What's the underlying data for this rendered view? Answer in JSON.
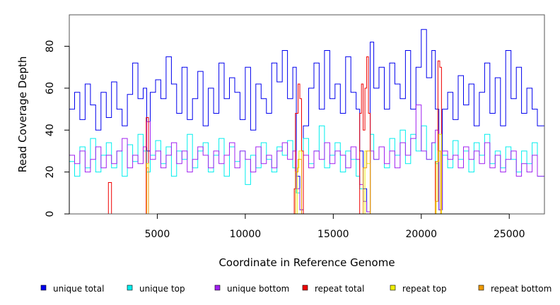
{
  "chart_data": {
    "type": "line",
    "title": "",
    "xlabel": "Coordinate in Reference Genome",
    "ylabel": "Read Coverage Depth",
    "xlim": [
      0,
      27000
    ],
    "ylim": [
      0,
      95
    ],
    "x_ticks": [
      5000,
      10000,
      15000,
      20000,
      25000
    ],
    "x_tick_labels": [
      "5000",
      "10000",
      "15000",
      "20000",
      "25000"
    ],
    "y_ticks": [
      0,
      20,
      40,
      60,
      80
    ],
    "y_tick_labels": [
      "0",
      "20",
      "40",
      "60",
      "80"
    ],
    "legend_position": "bottom",
    "series": [
      {
        "name": "unique total",
        "color": "#0000ee",
        "x": [
          0,
          300,
          600,
          900,
          1200,
          1500,
          1800,
          2100,
          2400,
          2700,
          3000,
          3300,
          3600,
          3900,
          4200,
          4400,
          4600,
          4900,
          5200,
          5500,
          5800,
          6100,
          6400,
          6700,
          7000,
          7300,
          7600,
          7900,
          8200,
          8500,
          8800,
          9100,
          9400,
          9700,
          10000,
          10300,
          10600,
          10900,
          11200,
          11500,
          11800,
          12100,
          12400,
          12700,
          12900,
          13100,
          13300,
          13600,
          13900,
          14200,
          14500,
          14800,
          15100,
          15400,
          15700,
          16000,
          16300,
          16500,
          16700,
          16900,
          17100,
          17300,
          17600,
          17900,
          18200,
          18500,
          18800,
          19100,
          19400,
          19700,
          20000,
          20300,
          20600,
          20800,
          21000,
          21200,
          21500,
          21800,
          22100,
          22400,
          22700,
          23000,
          23300,
          23600,
          23900,
          24200,
          24500,
          24800,
          25100,
          25400,
          25700,
          26000,
          26300,
          26600,
          27000
        ],
        "values": [
          50,
          58,
          45,
          62,
          52,
          40,
          58,
          46,
          63,
          50,
          42,
          57,
          72,
          55,
          60,
          30,
          58,
          64,
          55,
          75,
          62,
          48,
          70,
          45,
          55,
          68,
          42,
          60,
          48,
          72,
          55,
          65,
          58,
          45,
          70,
          40,
          62,
          55,
          48,
          72,
          63,
          78,
          55,
          70,
          18,
          2,
          42,
          60,
          72,
          50,
          78,
          55,
          62,
          48,
          75,
          58,
          50,
          30,
          12,
          1,
          82,
          60,
          70,
          50,
          72,
          62,
          55,
          78,
          50,
          70,
          88,
          65,
          78,
          50,
          2,
          50,
          58,
          45,
          66,
          52,
          62,
          42,
          58,
          72,
          48,
          65,
          42,
          78,
          55,
          70,
          48,
          60,
          50,
          42,
          46
        ]
      },
      {
        "name": "unique top",
        "color": "#00eeee",
        "x": [
          0,
          300,
          600,
          900,
          1200,
          1500,
          1800,
          2100,
          2400,
          2700,
          3000,
          3300,
          3600,
          3900,
          4200,
          4400,
          4600,
          4900,
          5200,
          5500,
          5800,
          6100,
          6400,
          6700,
          7000,
          7300,
          7600,
          7900,
          8200,
          8500,
          8800,
          9100,
          9400,
          9700,
          10000,
          10300,
          10600,
          10900,
          11200,
          11500,
          11800,
          12100,
          12400,
          12700,
          12900,
          13100,
          13300,
          13600,
          13900,
          14200,
          14500,
          14800,
          15100,
          15400,
          15700,
          16000,
          16300,
          16500,
          16700,
          16900,
          17100,
          17300,
          17600,
          17900,
          18200,
          18500,
          18800,
          19100,
          19400,
          19700,
          20000,
          20300,
          20600,
          20800,
          21000,
          21200,
          21500,
          21800,
          22100,
          22400,
          22700,
          23000,
          23300,
          23600,
          23900,
          24200,
          24500,
          24800,
          25100,
          25400,
          25700,
          26000,
          26300,
          26600,
          27000
        ],
        "values": [
          25,
          18,
          32,
          22,
          36,
          20,
          28,
          34,
          22,
          30,
          18,
          33,
          25,
          38,
          30,
          20,
          28,
          35,
          24,
          32,
          18,
          30,
          26,
          38,
          22,
          30,
          34,
          20,
          28,
          36,
          18,
          32,
          25,
          30,
          14,
          28,
          22,
          34,
          26,
          20,
          32,
          28,
          35,
          22,
          10,
          2,
          36,
          24,
          30,
          42,
          22,
          28,
          34,
          20,
          30,
          26,
          18,
          12,
          6,
          1,
          38,
          26,
          32,
          22,
          36,
          28,
          40,
          24,
          38,
          30,
          42,
          26,
          34,
          24,
          2,
          28,
          22,
          35,
          26,
          30,
          20,
          34,
          28,
          38,
          24,
          30,
          22,
          32,
          26,
          20,
          30,
          24,
          34,
          18,
          26
        ]
      },
      {
        "name": "unique bottom",
        "color": "#a020f0",
        "x": [
          0,
          300,
          600,
          900,
          1200,
          1500,
          1800,
          2100,
          2400,
          2700,
          3000,
          3300,
          3600,
          3900,
          4200,
          4400,
          4600,
          4900,
          5200,
          5500,
          5800,
          6100,
          6400,
          6700,
          7000,
          7300,
          7600,
          7900,
          8200,
          8500,
          8800,
          9100,
          9400,
          9700,
          10000,
          10300,
          10600,
          10900,
          11200,
          11500,
          11800,
          12100,
          12400,
          12700,
          12900,
          13100,
          13300,
          13600,
          13900,
          14200,
          14500,
          14800,
          15100,
          15400,
          15700,
          16000,
          16300,
          16500,
          16700,
          16900,
          17100,
          17300,
          17600,
          17900,
          18200,
          18500,
          18800,
          19100,
          19400,
          19700,
          20000,
          20300,
          20600,
          20800,
          21000,
          21200,
          21500,
          21800,
          22100,
          22400,
          22700,
          23000,
          23300,
          23600,
          23900,
          24200,
          24500,
          24800,
          25100,
          25400,
          25700,
          26000,
          26300,
          26600,
          27000
        ],
        "values": [
          28,
          24,
          30,
          20,
          26,
          32,
          22,
          28,
          24,
          30,
          36,
          22,
          28,
          24,
          32,
          44,
          26,
          30,
          22,
          28,
          34,
          24,
          30,
          20,
          26,
          32,
          28,
          22,
          30,
          24,
          28,
          34,
          22,
          30,
          26,
          20,
          32,
          24,
          28,
          22,
          30,
          34,
          26,
          30,
          12,
          2,
          28,
          22,
          30,
          26,
          34,
          24,
          30,
          28,
          22,
          32,
          26,
          14,
          6,
          1,
          30,
          26,
          32,
          24,
          30,
          22,
          34,
          28,
          36,
          52,
          30,
          26,
          34,
          40,
          2,
          30,
          26,
          28,
          22,
          32,
          26,
          30,
          24,
          34,
          22,
          28,
          20,
          26,
          30,
          18,
          24,
          20,
          28,
          18,
          22
        ]
      },
      {
        "name": "repeat total",
        "color": "#ee0000",
        "x": [
          0,
          2200,
          2220,
          2380,
          2400,
          4350,
          4370,
          4480,
          4500,
          12700,
          12780,
          12850,
          13000,
          13100,
          13200,
          13300,
          16400,
          16500,
          16600,
          16700,
          16800,
          16900,
          17000,
          17100,
          20700,
          20800,
          20950,
          21050,
          21150,
          27000
        ],
        "values": [
          0,
          0,
          15,
          15,
          0,
          0,
          46,
          46,
          0,
          0,
          12,
          48,
          62,
          55,
          30,
          0,
          0,
          48,
          62,
          40,
          60,
          75,
          48,
          0,
          0,
          25,
          73,
          70,
          0,
          0
        ]
      },
      {
        "name": "repeat top",
        "color": "#eeee00",
        "x": [
          0,
          4350,
          4400,
          4480,
          4500,
          12800,
          12950,
          13050,
          13200,
          16500,
          16800,
          16900,
          17100,
          20700,
          20850,
          21000,
          21150,
          27000
        ],
        "values": [
          0,
          0,
          24,
          24,
          0,
          0,
          22,
          30,
          0,
          0,
          30,
          24,
          0,
          0,
          25,
          38,
          0,
          0
        ]
      },
      {
        "name": "repeat bottom",
        "color": "#ee9a00",
        "x": [
          0,
          4350,
          4400,
          4480,
          4500,
          12700,
          12850,
          13000,
          13200,
          16500,
          16700,
          16900,
          17100,
          20650,
          20800,
          20950,
          21100,
          27000
        ],
        "values": [
          0,
          0,
          22,
          22,
          0,
          0,
          20,
          26,
          0,
          0,
          22,
          30,
          0,
          0,
          6,
          30,
          0,
          0
        ]
      }
    ]
  }
}
